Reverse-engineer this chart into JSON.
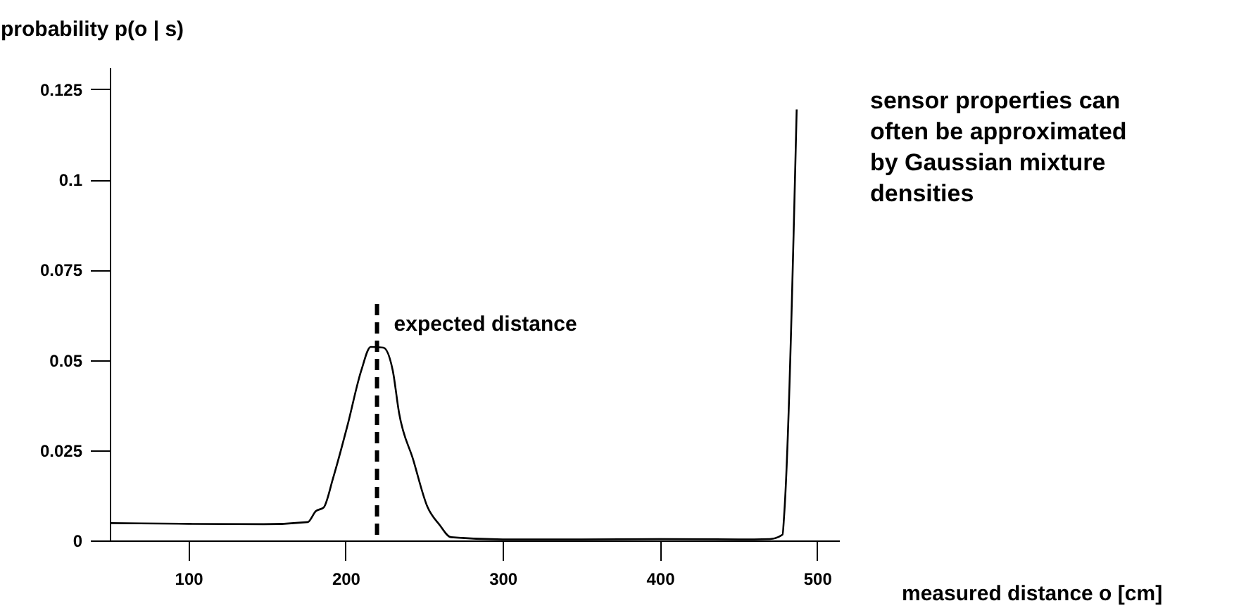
{
  "chart_data": {
    "type": "line",
    "xlabel": "measured distance o [cm]",
    "ylabel": "probability p(o | s)",
    "x": [
      50,
      100,
      148,
      176,
      181,
      186,
      192,
      201,
      210,
      216,
      224,
      230,
      234,
      243,
      252,
      260,
      267,
      300,
      350,
      400,
      450,
      470,
      478,
      479,
      487
    ],
    "values": [
      0.0048,
      0.0046,
      0.0045,
      0.0051,
      0.0081,
      0.0091,
      0.0172,
      0.0315,
      0.0471,
      0.0536,
      0.0534,
      0.0471,
      0.0354,
      0.0224,
      0.0094,
      0.0042,
      0.0009,
      0.0003,
      0.0003,
      0.0004,
      0.0003,
      0.0004,
      0.0016,
      0.0068,
      0.1194
    ],
    "color": "#000000",
    "xlim": [
      50,
      514
    ],
    "xticks": [
      100,
      200,
      300,
      400,
      500
    ],
    "ylim": [
      0,
      0.131
    ],
    "yticks": [
      0,
      0.025,
      0.05,
      0.075,
      0.1,
      0.125
    ],
    "ref_lines": [
      {
        "axis": "x",
        "value": 220,
        "label": "expected distance",
        "line_style": "dashed",
        "color": "#000000"
      }
    ],
    "annotations": [
      "sensor properties can\noften be approximated\nby Gaussian mixture\ndensities"
    ],
    "grid": false,
    "marker": "none",
    "line_style": "solid"
  }
}
